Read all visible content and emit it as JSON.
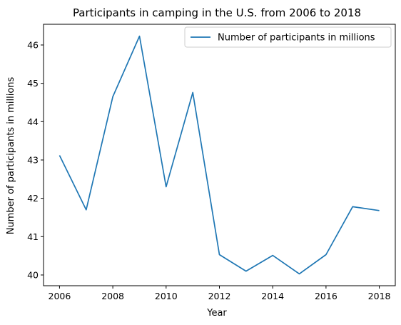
{
  "chart_data": {
    "type": "line",
    "title": "Participants in camping in the U.S. from 2006 to 2018",
    "xlabel": "Year",
    "ylabel": "Number of participants in millions",
    "x": [
      2006,
      2007,
      2008,
      2009,
      2010,
      2011,
      2012,
      2013,
      2014,
      2015,
      2016,
      2017,
      2018
    ],
    "series": [
      {
        "name": "Number of participants in millions",
        "values": [
          43.12,
          41.7,
          44.65,
          46.23,
          42.3,
          44.76,
          40.53,
          40.1,
          40.51,
          40.03,
          40.53,
          41.78,
          41.68
        ],
        "color": "#1f77b4"
      }
    ],
    "xticks": [
      "2006",
      "2008",
      "2010",
      "2012",
      "2014",
      "2016",
      "2018"
    ],
    "yticks": [
      "40",
      "41",
      "42",
      "43",
      "44",
      "45",
      "46"
    ],
    "xlim": [
      2005.4,
      2018.6
    ],
    "ylim": [
      39.72,
      46.54
    ],
    "legend_position": "top-right",
    "grid": false
  }
}
